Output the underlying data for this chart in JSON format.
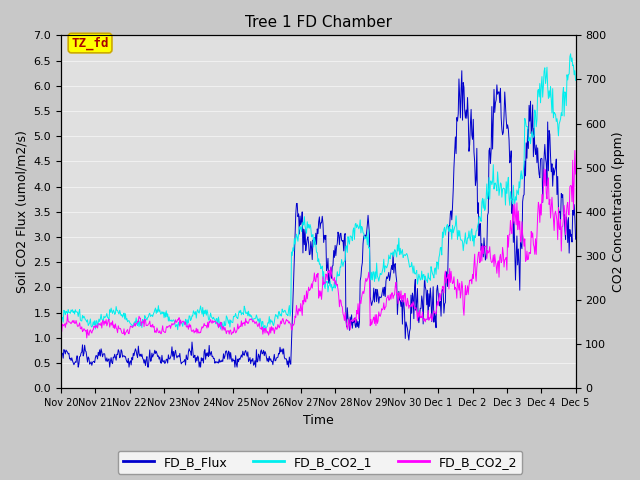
{
  "title": "Tree 1 FD Chamber",
  "xlabel": "Time",
  "ylabel_left": "Soil CO2 Flux (umol/m2/s)",
  "ylabel_right": "CO2 Concentration (ppm)",
  "ylim_left": [
    0.0,
    7.0
  ],
  "ylim_right": [
    0,
    800
  ],
  "yticks_left": [
    0.0,
    0.5,
    1.0,
    1.5,
    2.0,
    2.5,
    3.0,
    3.5,
    4.0,
    4.5,
    5.0,
    5.5,
    6.0,
    6.5,
    7.0
  ],
  "yticks_right": [
    0,
    100,
    200,
    300,
    400,
    500,
    600,
    700,
    800
  ],
  "color_flux": "#0000CC",
  "color_co2_1": "#00EEEE",
  "color_co2_2": "#FF00FF",
  "legend_labels": [
    "FD_B_Flux",
    "FD_B_CO2_1",
    "FD_B_CO2_2"
  ],
  "annotation_text": "TZ_fd",
  "annotation_box_facecolor": "#FFFF00",
  "annotation_box_edgecolor": "#CCAA00",
  "annotation_text_color": "#AA0000",
  "fig_facecolor": "#C8C8C8",
  "plot_facecolor": "#E0E0E0",
  "grid_color": "#F0F0F0",
  "x_tick_labels": [
    "Nov 20",
    "Nov 21",
    "Nov 22",
    "Nov 23",
    "Nov 24",
    "Nov 25",
    "Nov 26",
    "Nov 27",
    "Nov 28",
    "Nov 29",
    "Nov 30",
    "Dec 1",
    "Dec 2",
    "Dec 3",
    "Dec 4",
    "Dec 5"
  ],
  "title_fontsize": 11,
  "label_fontsize": 9,
  "tick_fontsize": 8,
  "legend_fontsize": 9
}
